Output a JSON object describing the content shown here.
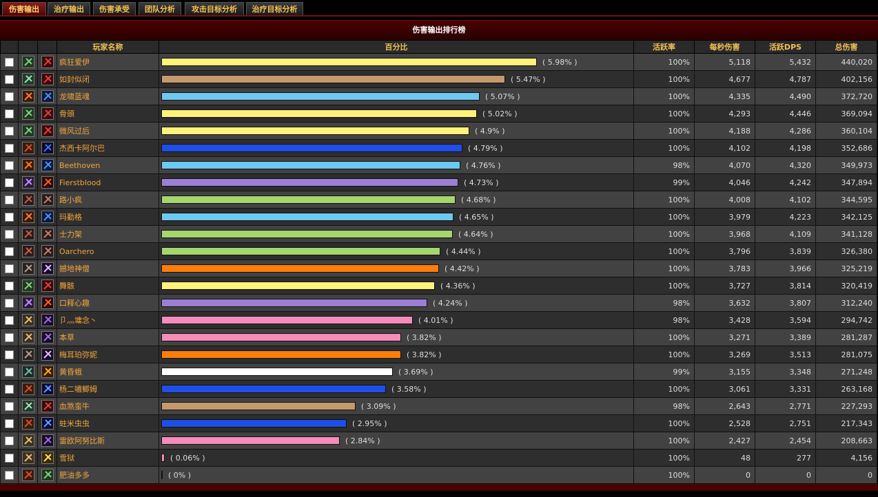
{
  "tabs": [
    {
      "label": "伤害输出",
      "active": true
    },
    {
      "label": "治疗输出",
      "active": false
    },
    {
      "label": "伤害承受",
      "active": false
    },
    {
      "label": "团队分析",
      "active": false
    },
    {
      "label": "攻击目标分析",
      "active": false
    },
    {
      "label": "治疗目标分析",
      "active": false
    }
  ],
  "panel_title": "伤害输出排行榜",
  "columns": {
    "name": "玩家名称",
    "percent": "百分比",
    "activity": "活跃率",
    "dps": "每秒伤害",
    "active_dps": "活跃DPS",
    "total": "总伤害"
  },
  "rows": [
    {
      "name": "疯狂爱伊",
      "pct": 5.98,
      "pct_label": "( 5.98% )",
      "color": "#fff27a",
      "activity": "100%",
      "dps": "5,118",
      "active_dps": "5,432",
      "total": "440,020",
      "icon1": "sword-icon",
      "icon2": "hand-icon"
    },
    {
      "name": "如封似闭",
      "pct": 5.47,
      "pct_label": "( 5.47% )",
      "color": "#c49a6c",
      "activity": "100%",
      "dps": "4,677",
      "active_dps": "4,787",
      "total": "402,156",
      "icon1": "blade-icon",
      "icon2": "hand-icon"
    },
    {
      "name": "龙啸蓝魂",
      "pct": 5.07,
      "pct_label": "( 5.07% )",
      "color": "#6ec9f2",
      "activity": "100%",
      "dps": "4,335",
      "active_dps": "4,490",
      "total": "372,720",
      "icon1": "staff-icon",
      "icon2": "frost-icon"
    },
    {
      "name": "骨頭",
      "pct": 5.02,
      "pct_label": "( 5.02% )",
      "color": "#fff27a",
      "activity": "100%",
      "dps": "4,293",
      "active_dps": "4,446",
      "total": "369,094",
      "icon1": "sword-icon",
      "icon2": "hand-icon"
    },
    {
      "name": "微风过后",
      "pct": 4.9,
      "pct_label": "( 4.9% )",
      "color": "#fff27a",
      "activity": "100%",
      "dps": "4,188",
      "active_dps": "4,286",
      "total": "360,104",
      "icon1": "sword-icon",
      "icon2": "hand-icon"
    },
    {
      "name": "杰西卡阿尔巴",
      "pct": 4.79,
      "pct_label": "( 4.79% )",
      "color": "#1f4fe6",
      "activity": "100%",
      "dps": "4,102",
      "active_dps": "4,198",
      "total": "352,686",
      "icon1": "claw-icon",
      "icon2": "shield-icon"
    },
    {
      "name": "Beethoven",
      "pct": 4.76,
      "pct_label": "( 4.76% )",
      "color": "#6ec9f2",
      "activity": "98%",
      "dps": "4,070",
      "active_dps": "4,320",
      "total": "349,973",
      "icon1": "staff-icon",
      "icon2": "frost-icon"
    },
    {
      "name": "Fierstblood",
      "pct": 4.73,
      "pct_label": "( 4.73% )",
      "color": "#9b7fd4",
      "activity": "99%",
      "dps": "4,046",
      "active_dps": "4,242",
      "total": "347,894",
      "icon1": "star-icon",
      "icon2": "fire-icon"
    },
    {
      "name": "路小疯",
      "pct": 4.68,
      "pct_label": "( 4.68% )",
      "color": "#a5d66e",
      "activity": "100%",
      "dps": "4,008",
      "active_dps": "4,102",
      "total": "344,595",
      "icon1": "bow-icon",
      "icon2": "beast-icon"
    },
    {
      "name": "玛勤格",
      "pct": 4.65,
      "pct_label": "( 4.65% )",
      "color": "#6ec9f2",
      "activity": "100%",
      "dps": "3,979",
      "active_dps": "4,223",
      "total": "342,125",
      "icon1": "staff-icon",
      "icon2": "frost-icon"
    },
    {
      "name": "士力架",
      "pct": 4.64,
      "pct_label": "( 4.64% )",
      "color": "#a5d66e",
      "activity": "100%",
      "dps": "3,968",
      "active_dps": "4,109",
      "total": "341,128",
      "icon1": "bow-icon",
      "icon2": "beast-icon"
    },
    {
      "name": "Oarchero",
      "pct": 4.44,
      "pct_label": "( 4.44% )",
      "color": "#a5d66e",
      "activity": "100%",
      "dps": "3,796",
      "active_dps": "3,839",
      "total": "326,380",
      "icon1": "bow-icon",
      "icon2": "beast-icon"
    },
    {
      "name": "撼地神僧",
      "pct": 4.42,
      "pct_label": "( 4.42% )",
      "color": "#ff7d0a",
      "activity": "100%",
      "dps": "3,783",
      "active_dps": "3,966",
      "total": "325,219",
      "icon1": "paw-icon",
      "icon2": "moon-icon"
    },
    {
      "name": "舞骸",
      "pct": 4.36,
      "pct_label": "( 4.36% )",
      "color": "#fff27a",
      "activity": "100%",
      "dps": "3,727",
      "active_dps": "3,814",
      "total": "320,419",
      "icon1": "sword-icon",
      "icon2": "hand-icon"
    },
    {
      "name": "口释心趣",
      "pct": 4.24,
      "pct_label": "( 4.24% )",
      "color": "#9b7fd4",
      "activity": "98%",
      "dps": "3,632",
      "active_dps": "3,807",
      "total": "312,240",
      "icon1": "star-icon",
      "icon2": "fire-icon"
    },
    {
      "name": "卩灬墉念丶",
      "pct": 4.01,
      "pct_label": "( 4.01% )",
      "color": "#f58cba",
      "activity": "98%",
      "dps": "3,428",
      "active_dps": "3,594",
      "total": "294,742",
      "icon1": "hammer-icon",
      "icon2": "holy-icon"
    },
    {
      "name": "本草",
      "pct": 3.82,
      "pct_label": "( 3.82% )",
      "color": "#f58cba",
      "activity": "100%",
      "dps": "3,271",
      "active_dps": "3,389",
      "total": "281,287",
      "icon1": "hammer-icon",
      "icon2": "holy-icon"
    },
    {
      "name": "梅耳珀弥妮",
      "pct": 3.82,
      "pct_label": "( 3.82% )",
      "color": "#ff7d0a",
      "activity": "100%",
      "dps": "3,269",
      "active_dps": "3,513",
      "total": "281,075",
      "icon1": "paw-icon",
      "icon2": "moon-icon"
    },
    {
      "name": "黄昏蛾",
      "pct": 3.69,
      "pct_label": "( 3.69% )",
      "color": "#ffffff",
      "activity": "99%",
      "dps": "3,155",
      "active_dps": "3,348",
      "total": "271,248",
      "icon1": "dagger-icon",
      "icon2": "skull-icon"
    },
    {
      "name": "杨二嘯鲫姆",
      "pct": 3.58,
      "pct_label": "( 3.58% )",
      "color": "#1f4fe6",
      "activity": "100%",
      "dps": "3,061",
      "active_dps": "3,331",
      "total": "263,168",
      "icon1": "claw-icon",
      "icon2": "lightning-icon"
    },
    {
      "name": "血煞蛮牛",
      "pct": 3.09,
      "pct_label": "( 3.09% )",
      "color": "#c49a6c",
      "activity": "98%",
      "dps": "2,643",
      "active_dps": "2,771",
      "total": "227,293",
      "icon1": "blade-icon",
      "icon2": "hand-icon"
    },
    {
      "name": "蛀米虫虫",
      "pct": 2.95,
      "pct_label": "( 2.95% )",
      "color": "#1f4fe6",
      "activity": "100%",
      "dps": "2,528",
      "active_dps": "2,751",
      "total": "217,343",
      "icon1": "claw-icon",
      "icon2": "lightning-icon"
    },
    {
      "name": "雷欧阿努比斯",
      "pct": 2.84,
      "pct_label": "( 2.84% )",
      "color": "#f58cba",
      "activity": "100%",
      "dps": "2,427",
      "active_dps": "2,454",
      "total": "208,663",
      "icon1": "hammer-icon",
      "icon2": "holy-icon"
    },
    {
      "name": "雪狱",
      "pct": 0.06,
      "pct_label": "( 0.06% )",
      "color": "#f58cba",
      "activity": "100%",
      "dps": "48",
      "active_dps": "277",
      "total": "4,156",
      "icon1": "hammer-icon",
      "icon2": "light-icon"
    },
    {
      "name": "肥油多多",
      "pct": 0,
      "pct_label": "( 0% )",
      "color": "#6ec9f2",
      "activity": "100%",
      "dps": "0",
      "active_dps": "0",
      "total": "0",
      "icon1": "claw-icon",
      "icon2": "sword-icon"
    }
  ]
}
